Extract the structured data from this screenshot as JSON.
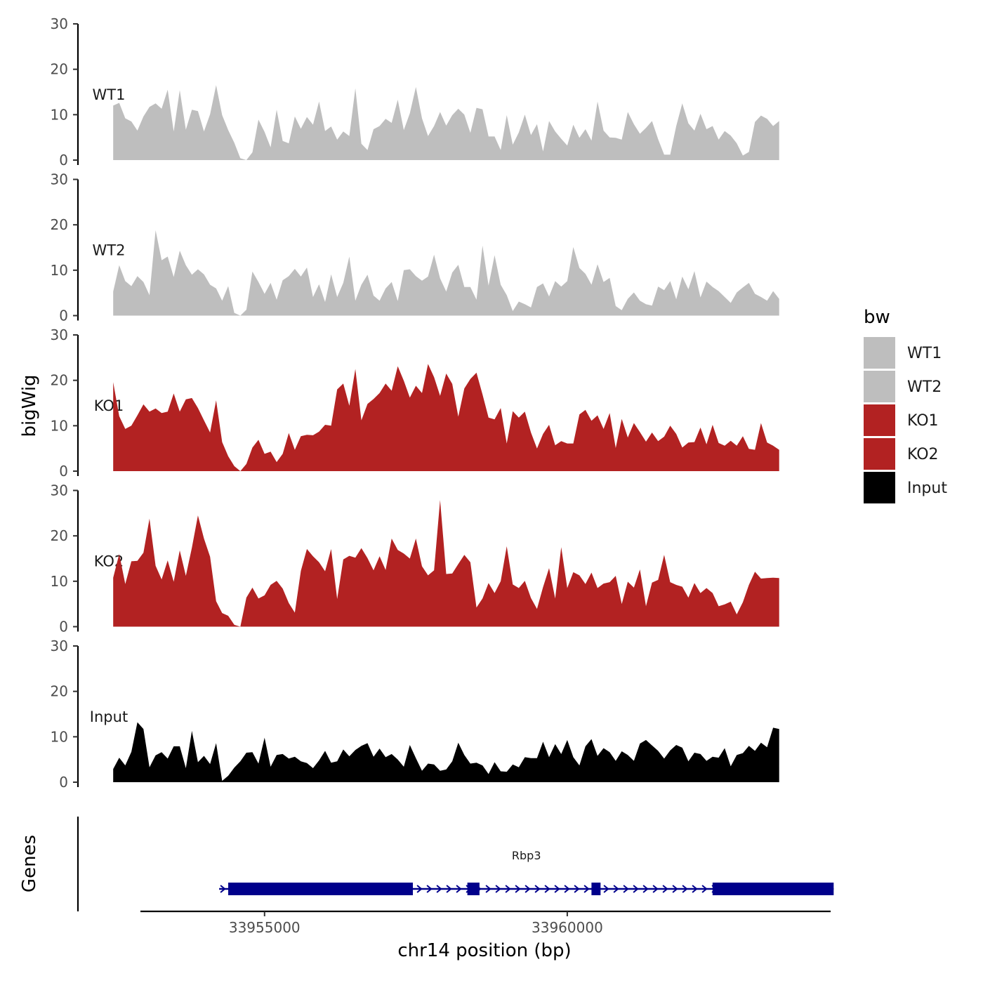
{
  "chart_data": {
    "type": "area",
    "title": "",
    "xlabel": "chr14 position (bp)",
    "ylabel": "bigWig",
    "genes_ylabel": "Genes",
    "x_range": [
      33952950,
      33964350
    ],
    "x_ticks": [
      33955000,
      33960000
    ],
    "x_tick_labels": [
      "33955000",
      "33960000"
    ],
    "ylim": [
      0,
      30
    ],
    "y_ticks": [
      0,
      10,
      20,
      30
    ],
    "y_tick_labels": [
      "0",
      "10",
      "20",
      "30"
    ],
    "x_start": 33952500,
    "x_step": 100,
    "legend": {
      "title": "bw",
      "position": "right",
      "entries": [
        "WT1",
        "WT2",
        "KO1",
        "KO2",
        "Input"
      ]
    },
    "series": [
      {
        "name": "WT1",
        "color": "#bebebe",
        "values": [
          12,
          12.6,
          9.2,
          8.5,
          6.5,
          9.6,
          11.7,
          12.5,
          11.3,
          15.5,
          6.3,
          15.4,
          6.7,
          11.1,
          10.8,
          6.3,
          10.1,
          16.5,
          9.9,
          6.6,
          3.8,
          0.4,
          0,
          1.7,
          8.9,
          6.2,
          2.8,
          11.1,
          4.2,
          3.7,
          9.6,
          6.9,
          9.5,
          7.8,
          12.9,
          6.4,
          7.4,
          4.5,
          6.3,
          5.3,
          15.8,
          3.6,
          2.2,
          6.8,
          7.5,
          9.1,
          8.2,
          13.3,
          6.6,
          10.3,
          16.1,
          9.2,
          5.3,
          7.5,
          10.6,
          7.6,
          9.9,
          11.3,
          10,
          6,
          11.5,
          11.2,
          5.2,
          5.2,
          2.2,
          9.9,
          3.4,
          6.1,
          10,
          5.5,
          7.9,
          1.9,
          8.6,
          6.3,
          4.7,
          3.2,
          7.8,
          4.9,
          6.8,
          4.3,
          12.9,
          6.5,
          5,
          4.9,
          4.5,
          10.6,
          7.9,
          5.8,
          7.1,
          8.6,
          4.6,
          1.2,
          1.2,
          7.5,
          12.5,
          8.1,
          6.5,
          10.2,
          6.8,
          7.5,
          4.5,
          6.4,
          5.4,
          3.7,
          1,
          1.8,
          8.4,
          9.8,
          9.1,
          7.5,
          8.6
        ],
        "fill": "#bebebe"
      },
      {
        "name": "WT2",
        "color": "#bebebe",
        "values": [
          5.3,
          11.1,
          7.6,
          6.5,
          8.7,
          7.4,
          4.5,
          18.8,
          12.2,
          13,
          8.5,
          14.3,
          11.1,
          9,
          10.2,
          9.1,
          6.8,
          6,
          3.3,
          6.5,
          0.6,
          0,
          1.3,
          9.7,
          7.4,
          4.8,
          7.2,
          3.5,
          7.8,
          8.7,
          10.3,
          8.6,
          10.6,
          4.1,
          6.9,
          3,
          9.1,
          4.1,
          7.2,
          13,
          3.3,
          6.8,
          9,
          4.4,
          3.3,
          6,
          7.4,
          3.2,
          10,
          10.2,
          8.7,
          7.7,
          8.6,
          13.4,
          8.2,
          5.3,
          9.5,
          11.2,
          6.3,
          6.3,
          3.5,
          15.4,
          6.6,
          13.3,
          6.8,
          4.5,
          1,
          3.1,
          2.5,
          1.8,
          6.3,
          7.1,
          4.2,
          7.6,
          6.4,
          7.6,
          15.1,
          10.5,
          9.2,
          6.8,
          11.3,
          7.4,
          8.3,
          2.1,
          1.2,
          3.7,
          5.1,
          3.3,
          2.5,
          2.2,
          6.4,
          5.6,
          7.6,
          3.6,
          8.6,
          5.8,
          9.8,
          4,
          7.5,
          6.3,
          5.4,
          4.1,
          2.8,
          5.1,
          6.2,
          7.2,
          4.8,
          4.1,
          3.3,
          5.4,
          3.7
        ],
        "fill": "#bebebe"
      },
      {
        "name": "KO1",
        "color": "#b22222",
        "values": [
          19.6,
          12.1,
          9.3,
          10,
          12.3,
          14.7,
          13.1,
          13.8,
          12.8,
          13.1,
          17.1,
          13.1,
          15.8,
          16.1,
          13.9,
          11.2,
          8.5,
          15.6,
          6.4,
          3.3,
          1.1,
          0,
          1.6,
          5.2,
          6.9,
          3.8,
          4.3,
          2,
          3.8,
          8.4,
          4.7,
          7.7,
          8,
          7.9,
          8.7,
          10.2,
          10,
          18,
          19.3,
          14.4,
          22.5,
          11.2,
          14.8,
          15.9,
          17.2,
          19.3,
          17.7,
          23.1,
          19.9,
          16.2,
          18.8,
          17.2,
          23.6,
          20.7,
          16.6,
          21.5,
          19.2,
          12,
          18.2,
          20.3,
          21.7,
          16.9,
          11.8,
          11.4,
          13.9,
          6.1,
          13.2,
          11.8,
          13.1,
          8.5,
          5,
          8.2,
          10.2,
          5.7,
          6.6,
          6.1,
          6.1,
          12.5,
          13.5,
          11.1,
          12.3,
          9.3,
          12.8,
          5.1,
          11.5,
          7.4,
          10.6,
          8.6,
          6.5,
          8.5,
          6.6,
          7.6,
          10,
          8.2,
          5.2,
          6.3,
          6.4,
          9.6,
          5.9,
          10.2,
          6.2,
          5.6,
          6.7,
          5.6,
          7.7,
          4.9,
          4.7,
          10.6,
          6.3,
          5.6,
          4.7
        ],
        "fill": "#b22222"
      },
      {
        "name": "KO2",
        "color": "#b22222",
        "values": [
          10.8,
          16,
          9.4,
          14.4,
          14.5,
          16.3,
          23.8,
          13.4,
          10.4,
          14.6,
          9.9,
          16.8,
          11.2,
          17.4,
          24.5,
          19.4,
          15.4,
          5.6,
          3,
          2.4,
          0.4,
          0,
          6.4,
          8.6,
          6.2,
          6.9,
          9.2,
          10.1,
          8.4,
          5.2,
          3.1,
          12.3,
          17.1,
          15.5,
          14.2,
          12.2,
          17.1,
          6.1,
          14.8,
          15.6,
          15.2,
          17.3,
          15.1,
          12.4,
          15.5,
          12.5,
          19.4,
          16.9,
          16.1,
          15,
          19.4,
          13.3,
          11.3,
          12.4,
          27.9,
          11.6,
          11.7,
          13.8,
          15.8,
          14.2,
          4.2,
          6.2,
          9.6,
          7.4,
          10,
          17.7,
          9.3,
          8.5,
          10.1,
          6.3,
          3.9,
          8.7,
          12.9,
          6.2,
          17.5,
          8.5,
          12,
          11.3,
          9.4,
          11.9,
          8.5,
          9.5,
          9.8,
          11.2,
          5,
          9.9,
          8.6,
          12.6,
          4.5,
          9.7,
          10.3,
          15.8,
          9.8,
          9.2,
          8.8,
          6.4,
          9.6,
          7.4,
          8.5,
          7.4,
          4.5,
          4.9,
          5.5,
          2.7,
          5.4,
          9.2,
          12.1,
          10.6,
          10.7,
          10.8,
          10.7
        ],
        "fill": "#b22222"
      },
      {
        "name": "Input",
        "color": "#000000",
        "values": [
          2.9,
          5.4,
          3.7,
          6.7,
          13.2,
          11.7,
          3.3,
          5.9,
          6.6,
          5.2,
          7.9,
          7.9,
          3.1,
          11.3,
          4.4,
          5.8,
          4,
          8.6,
          0.3,
          1.4,
          3.2,
          4.6,
          6.5,
          6.6,
          4.1,
          9.8,
          3.4,
          6,
          6.2,
          5.2,
          5.6,
          4.6,
          4.2,
          3.1,
          4.8,
          6.9,
          4.3,
          4.6,
          7.2,
          5.7,
          7.1,
          8,
          8.6,
          5.6,
          7.4,
          5.5,
          6.2,
          5,
          3.4,
          8.2,
          5.3,
          2.5,
          4.1,
          3.9,
          2.5,
          2.8,
          4.6,
          8.7,
          6,
          4.1,
          4.3,
          3.7,
          1.8,
          4.4,
          2.4,
          2.3,
          3.9,
          3.3,
          5.5,
          5.3,
          5.3,
          8.9,
          5.5,
          8.4,
          6.2,
          9.3,
          5.5,
          3.7,
          7.9,
          9.5,
          5.8,
          7.5,
          6.6,
          4.7,
          6.8,
          6,
          4.7,
          8.5,
          9.3,
          8.1,
          6.9,
          5.2,
          7,
          8.2,
          7.6,
          4.6,
          6.5,
          6.2,
          4.7,
          5.6,
          5.4,
          7.5,
          3.5,
          6,
          6.4,
          8,
          6.9,
          8.7,
          7.7,
          12,
          11.7
        ],
        "fill": "#000000"
      }
    ],
    "gene": {
      "name": "Rbp3",
      "color": "#00008b",
      "start": 33954250,
      "end": 33964400,
      "strand": "+",
      "exons": [
        [
          33954400,
          33957450
        ],
        [
          33958350,
          33958550
        ],
        [
          33960400,
          33960550
        ],
        [
          33962400,
          33964400
        ]
      ]
    }
  }
}
